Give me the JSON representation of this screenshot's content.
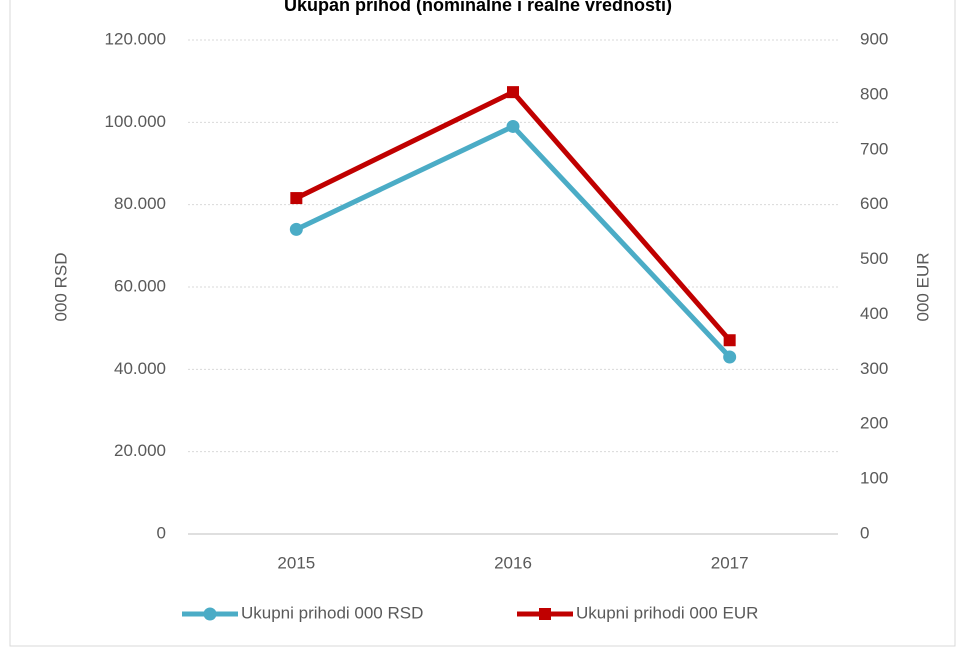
{
  "chart_data": {
    "type": "line",
    "title": "Ukupan prihod (nominalne i realne vrednosti)",
    "y_label": "000 RSD",
    "y2_label": "000 EUR",
    "categories": [
      "2015",
      "2016",
      "2017"
    ],
    "series": [
      {
        "name": "Ukupni prihodi 000 RSD",
        "color": "#4bacc6",
        "marker": "circle",
        "values": [
          74000,
          99000,
          43000
        ]
      },
      {
        "name": "Ukupni prihodi 000 EUR",
        "color": "#c00000",
        "marker": "square",
        "axis": "y2",
        "values": [
          612,
          805,
          353
        ]
      }
    ],
    "ylim": [
      0,
      120000
    ],
    "yticks": [
      0,
      {
        "value": 20000,
        "label": "20.000"
      },
      {
        "value": 40000,
        "label": "40.000"
      },
      {
        "value": 60000,
        "label": "60.000"
      },
      {
        "value": 80000,
        "label": "80.000"
      },
      {
        "value": 100000,
        "label": "100.000"
      },
      {
        "value": 120000,
        "label": "120.000"
      }
    ],
    "y2lim": [
      0,
      900
    ],
    "y2ticks": [
      0,
      100,
      200,
      300,
      400,
      500,
      600,
      700,
      800,
      900
    ],
    "grid": true,
    "legend": "bottom"
  }
}
